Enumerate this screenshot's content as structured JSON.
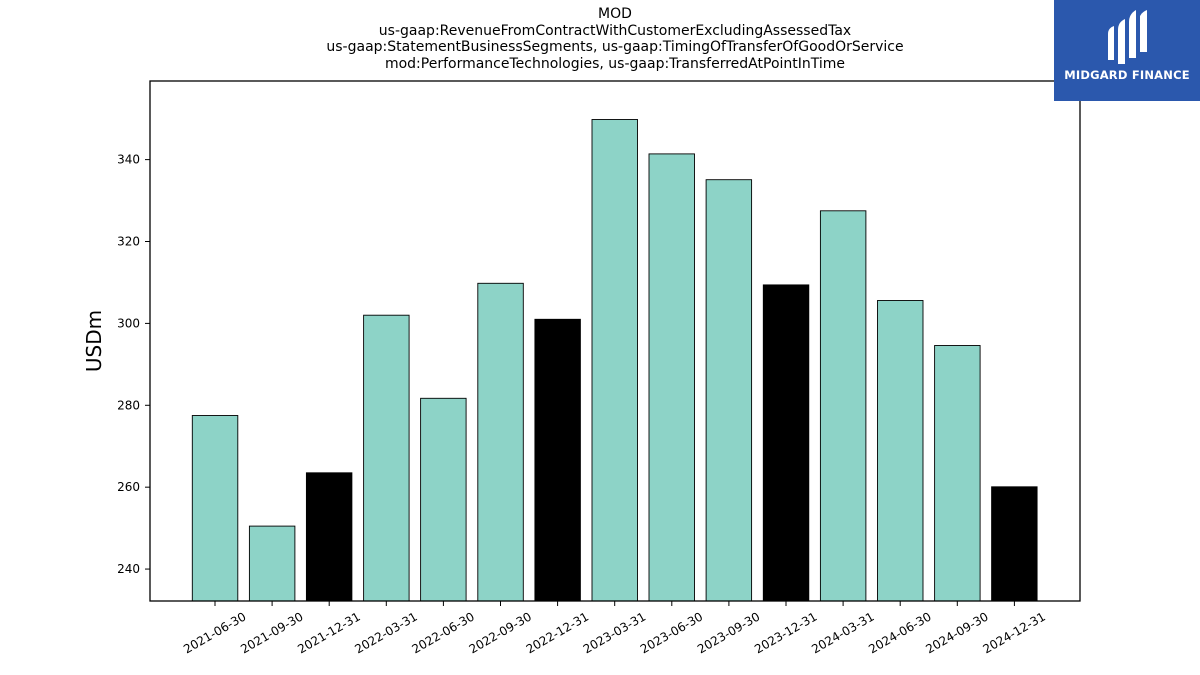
{
  "title_lines": [
    "MOD",
    "us-gaap:RevenueFromContractWithCustomerExcludingAssessedTax",
    "us-gaap:StatementBusinessSegments, us-gaap:TimingOfTransferOfGoodOrService",
    "mod:PerformanceTechnologies, us-gaap:TransferredAtPointInTime"
  ],
  "logo": {
    "text": "MIDGARD FINANCE",
    "background": "#2b58ad"
  },
  "chart_data": {
    "type": "bar",
    "ylabel": "USDm",
    "xlabel": "",
    "ylim": [
      232.2,
      359.2
    ],
    "yticks": [
      240,
      260,
      280,
      300,
      320,
      340
    ],
    "grid": false,
    "colors": {
      "regular": "#8dd3c7",
      "highlight": "#000000",
      "edge": "#000000"
    },
    "categories": [
      "2021-06-30",
      "2021-09-30",
      "2021-12-31",
      "2022-03-31",
      "2022-06-30",
      "2022-09-30",
      "2022-12-31",
      "2023-03-31",
      "2023-06-30",
      "2023-09-30",
      "2023-12-31",
      "2024-03-31",
      "2024-06-30",
      "2024-09-30",
      "2024-12-31"
    ],
    "values": [
      277.5,
      250.5,
      263.5,
      302.0,
      281.7,
      309.8,
      301.0,
      349.8,
      341.4,
      335.1,
      309.4,
      327.5,
      305.6,
      294.6,
      260.1
    ],
    "highlight": [
      false,
      false,
      true,
      false,
      false,
      false,
      true,
      false,
      false,
      false,
      true,
      false,
      false,
      false,
      true
    ]
  }
}
